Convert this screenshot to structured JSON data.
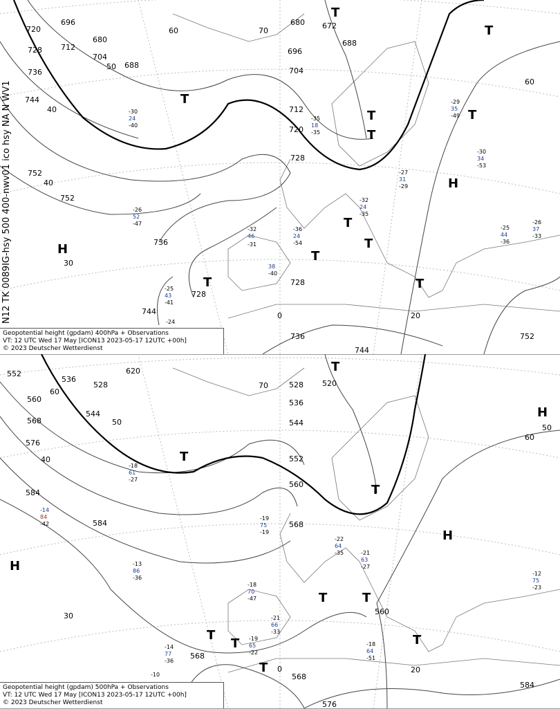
{
  "side_label": "N12 TK 0089IG-hsy 500 400-nwv01 ico hsy NA N WV1",
  "panels": [
    {
      "caption": {
        "line1": "Geopotential height (gpdam) 400hPa + Observations",
        "line2": "VT: 12 UTC Wed  17 May  [ICON13  2023-05-17 12UTC  +00h]",
        "line3": "©  2023 Deutscher Wetterdienst"
      },
      "contour_labels": [
        "720",
        "696",
        "680",
        "712",
        "688",
        "704",
        "728",
        "736",
        "744",
        "752",
        "752",
        "736",
        "728",
        "744",
        "736",
        "744",
        "752",
        "672",
        "688",
        "680",
        "696",
        "704",
        "712",
        "720",
        "728",
        "728"
      ],
      "graticule_labels": [
        "70",
        "60",
        "50",
        "40",
        "40",
        "30",
        "0",
        "20",
        "60"
      ],
      "centers": [
        "T",
        "T",
        "T",
        "T",
        "T",
        "T",
        "H",
        "H",
        "T",
        "T",
        "T",
        "T",
        "T"
      ],
      "observations": [
        "-26",
        "52",
        "-47",
        "-25",
        "43",
        "-41",
        "-30",
        "24",
        "-40",
        "-32",
        "46",
        "-31",
        "38",
        "-40",
        "-36",
        "24",
        "-54",
        "-35",
        "18",
        "-35",
        "-32",
        "24",
        "-35",
        "-27",
        "31",
        "-29",
        "-29",
        "35",
        "-49",
        "-30",
        "34",
        "-53",
        "-25",
        "44",
        "-36",
        "-26",
        "37",
        "-33",
        "-24"
      ]
    },
    {
      "caption": {
        "line1": "Geopotential height (gpdam) 500hPa + Observations",
        "line2": "VT: 12 UTC Wed  17 May [ICON13  2023-05-17 12UTC  +00h]",
        "line3": "©  2023 Deutscher Wetterdienst"
      },
      "contour_labels": [
        "552",
        "536",
        "528",
        "620",
        "544",
        "560",
        "568",
        "576",
        "584",
        "584",
        "520",
        "528",
        "536",
        "544",
        "552",
        "560",
        "568",
        "560",
        "568",
        "568",
        "576",
        "584"
      ],
      "graticule_labels": [
        "60",
        "50",
        "40",
        "30",
        "70",
        "0",
        "20",
        "60",
        "50"
      ],
      "centers": [
        "T",
        "H",
        "T",
        "H",
        "T",
        "H",
        "T",
        "T",
        "T",
        "T",
        "T",
        "T"
      ],
      "observations": [
        "-14",
        "84",
        "-42",
        "-13",
        "86",
        "-36",
        "-18",
        "61",
        "-27",
        "-19",
        "75",
        "-19",
        "-22",
        "64",
        "-35",
        "-21",
        "63",
        "-27",
        "-18",
        "70",
        "-47",
        "-21",
        "66",
        "-33",
        "-19",
        "65",
        "-22",
        "-14",
        "77",
        "-36",
        "-12",
        "75",
        "-23",
        "-18",
        "64",
        "-51",
        "-10"
      ]
    }
  ]
}
